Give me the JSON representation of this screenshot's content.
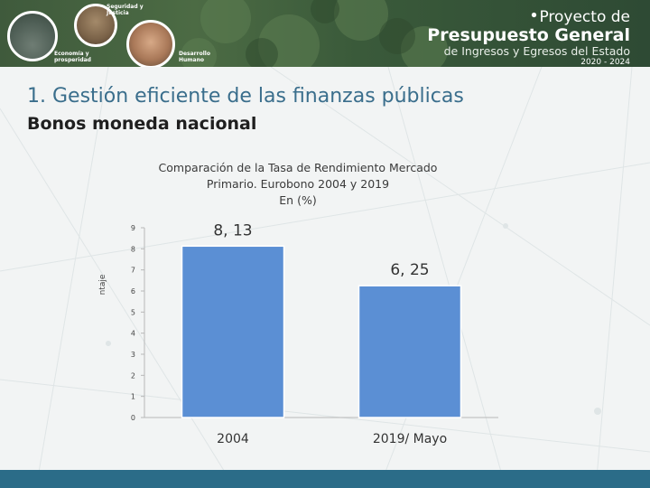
{
  "banner": {
    "labels": {
      "security": "Seguridad y Justicia",
      "economy": "Economía y prosperidad",
      "development": "Desarrollo Humano"
    },
    "project": {
      "line1": "Proyecto de",
      "line2": "Presupuesto General",
      "line3": "de Ingresos y Egresos del Estado",
      "line4": "2020 - 2024"
    }
  },
  "slide": {
    "title": "1.  Gestión eficiente de las finanzas públicas",
    "subtitle": "Bonos moneda nacional"
  },
  "colors": {
    "bar": "#5b8fd4",
    "title": "#3a6e8c",
    "footer": "#2b6c88"
  },
  "chart_data": {
    "type": "bar",
    "title_lines": [
      "Comparación de la Tasa de Rendimiento Mercado",
      "Primario. Eurobono 2004  y 2019",
      "En (%)"
    ],
    "ylabel": "ntaje",
    "categories": [
      "2004",
      "2019/ Mayo"
    ],
    "values": [
      8.13,
      6.25
    ],
    "data_labels": [
      "8, 13",
      "6, 25"
    ],
    "yticks": [
      "0",
      "1",
      "2",
      "3",
      "4",
      "5",
      "6",
      "7",
      "8",
      "9"
    ],
    "ylim": [
      0,
      9
    ],
    "grid": false,
    "legend": "none"
  }
}
